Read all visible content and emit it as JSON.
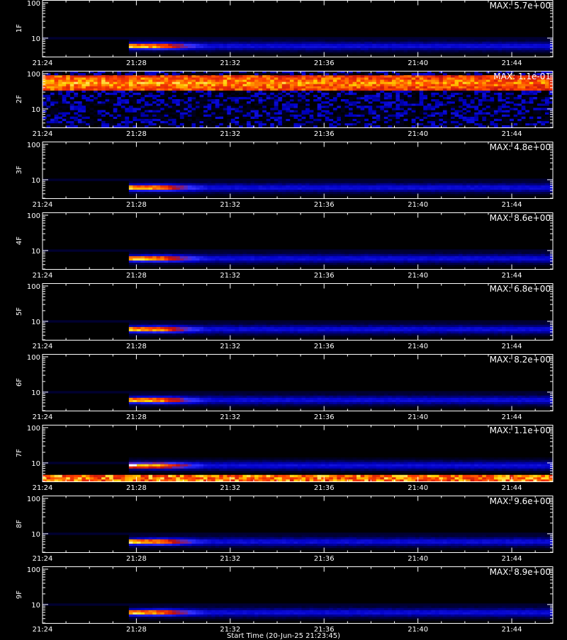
{
  "footer_label": "Start Time (20-Jun-25 21:23:45)",
  "chart_data": {
    "type": "heatmap",
    "x_tick_labels": [
      "21:24",
      "21:28",
      "21:32",
      "21:36",
      "21:40",
      "21:44"
    ],
    "x_ticks_minutes": [
      0,
      4,
      8,
      12,
      16,
      20
    ],
    "x_range_minutes": [
      0,
      21.75
    ],
    "y_scale": "log",
    "y_range": [
      3,
      120
    ],
    "y_tick_labels": [
      {
        "value": 10,
        "label": "10"
      },
      {
        "value": 100,
        "label": "100"
      }
    ],
    "colormap": [
      "#000000",
      "#0000c8",
      "#3030ff",
      "#c01010",
      "#ff4000",
      "#ffd000",
      "#ffffff"
    ],
    "panels": [
      {
        "name": "1F",
        "max_label": "MAX: 5.7e+00",
        "pattern": "burst",
        "burst_center": 6.0,
        "onset_minutes": 3.6
      },
      {
        "name": "2F",
        "max_label": "MAX: 1.1e-01",
        "pattern": "band",
        "band_low": 32,
        "band_high": 95
      },
      {
        "name": "3F",
        "max_label": "MAX: 4.8e+00",
        "pattern": "burst",
        "burst_center": 6.0,
        "onset_minutes": 3.6
      },
      {
        "name": "4F",
        "max_label": "MAX: 8.6e+00",
        "pattern": "burst",
        "burst_center": 6.0,
        "onset_minutes": 3.6
      },
      {
        "name": "5F",
        "max_label": "MAX: 6.8e+00",
        "pattern": "burst",
        "burst_center": 6.0,
        "onset_minutes": 3.6
      },
      {
        "name": "6F",
        "max_label": "MAX: 8.2e+00",
        "pattern": "burst",
        "burst_center": 6.0,
        "onset_minutes": 3.6
      },
      {
        "name": "7F",
        "max_label": "MAX: 1.1e+00",
        "pattern": "burst_floor",
        "burst_center": 8.5,
        "onset_minutes": 3.6
      },
      {
        "name": "8F",
        "max_label": "MAX: 9.6e+00",
        "pattern": "burst",
        "burst_center": 6.0,
        "onset_minutes": 3.6
      },
      {
        "name": "9F",
        "max_label": "MAX: 8.9e+00",
        "pattern": "burst",
        "burst_center": 6.0,
        "onset_minutes": 3.6
      }
    ]
  }
}
